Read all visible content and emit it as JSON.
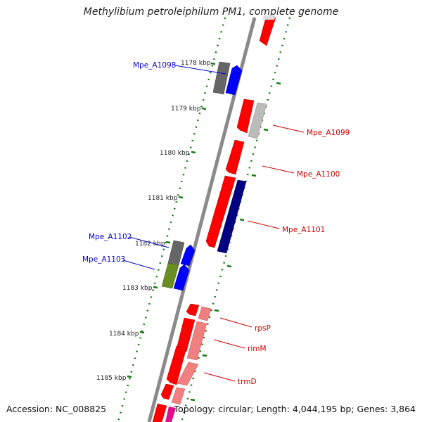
{
  "title": "Methylibium petroleiphilum PM1, complete genome",
  "accession_text": "Accession: NC_008825",
  "topology_text": "Topology: circular; Length: 4,044,195 bp; Genes: 3,864",
  "ticks": [
    {
      "label": "1178 kbp"
    },
    {
      "label": "1179 kbp"
    },
    {
      "label": "1180 kbp"
    },
    {
      "label": "1181 kbp"
    },
    {
      "label": "1182 kbp"
    },
    {
      "label": "1183 kbp"
    },
    {
      "label": "1184 kbp"
    },
    {
      "label": "1185 kbp"
    }
  ],
  "genes": [
    {
      "name": "Mpe_A1098",
      "color": "#0000cc"
    },
    {
      "name": "Mpe_A1099",
      "color": "#cc0000"
    },
    {
      "name": "Mpe_A1100",
      "color": "#cc0000"
    },
    {
      "name": "Mpe_A1101",
      "color": "#cc0000"
    },
    {
      "name": "Mpe_A1102",
      "color": "#0000cc"
    },
    {
      "name": "Mpe_A1103",
      "color": "#0000cc"
    },
    {
      "name": "rpsP",
      "color": "#cc0000"
    },
    {
      "name": "rimM",
      "color": "#cc0000"
    },
    {
      "name": "trmD",
      "color": "#cc0000"
    }
  ],
  "colors": {
    "backbone": "#8a8a8a",
    "tick_ring": "#1a7a1a",
    "red": "#ff0000",
    "blue": "#0000ff",
    "gray_dark": "#666666",
    "gray_light": "#bbbbbb",
    "navy": "#000080",
    "olive": "#6b8e23",
    "pink": "#f08080"
  }
}
